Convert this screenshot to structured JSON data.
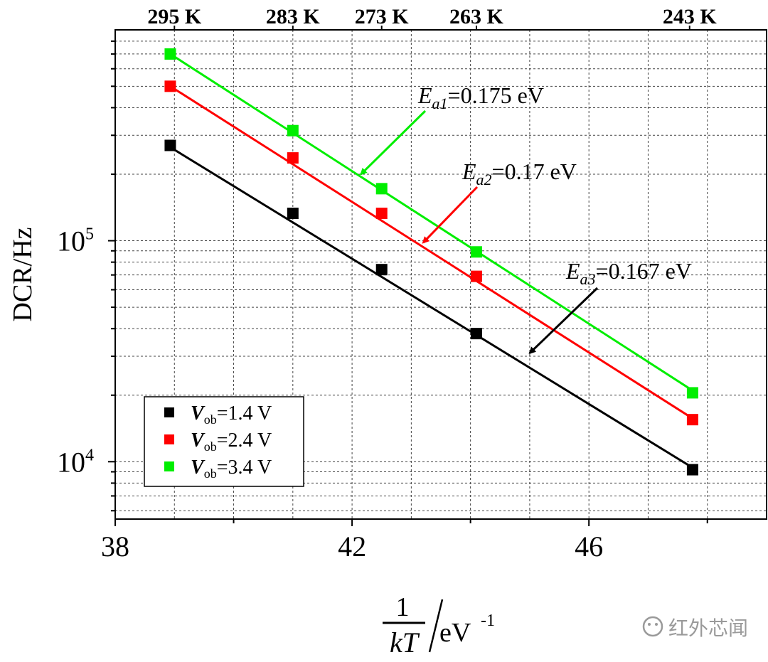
{
  "chart_data": {
    "type": "scatter",
    "yscale": "log",
    "xlim": [
      38,
      49
    ],
    "ylim": [
      5500,
      900000
    ],
    "x_ticks": [
      38,
      42,
      46
    ],
    "x_ticks_minor": [
      40,
      44,
      48
    ],
    "y_ticks": [
      10000,
      100000
    ],
    "y_tick_labels": [
      {
        "base": "10",
        "exp": "4"
      },
      {
        "base": "10",
        "exp": "5"
      }
    ],
    "ylabel": "DCR/Hz",
    "xlabel": {
      "num": "1",
      "den": "kT",
      "unit": "eV",
      "exp": "-1"
    },
    "top_axis": {
      "labels": [
        "295 K",
        "283 K",
        "273 K",
        "263 K",
        "243 K"
      ],
      "x": [
        39.0,
        41.0,
        42.5,
        44.1,
        47.7
      ]
    },
    "x": [
      38.93,
      41.0,
      42.5,
      44.1,
      47.75
    ],
    "series": [
      {
        "name": "Vob=1.4 V",
        "label_var": "V",
        "label_sub": "ob",
        "label_val": "=1.4 V",
        "color": "#000000",
        "values": [
          270000,
          133000,
          74000,
          38000,
          9200
        ],
        "fit": [
          [
            38.93,
            265000
          ],
          [
            47.75,
            9400
          ]
        ]
      },
      {
        "name": "Vob=2.4 V",
        "label_var": "V",
        "label_sub": "ob",
        "label_val": "=2.4 V",
        "color": "#ff0000",
        "values": [
          500000,
          237000,
          133000,
          69000,
          15500
        ],
        "fit": [
          [
            38.93,
            500000
          ],
          [
            47.75,
            15700
          ]
        ]
      },
      {
        "name": "Vob=3.4 V",
        "label_var": "V",
        "label_sub": "ob",
        "label_val": "=3.4 V",
        "color": "#00ee00",
        "values": [
          700000,
          315000,
          172000,
          89000,
          20500
        ],
        "fit": [
          [
            38.93,
            700000
          ],
          [
            47.75,
            21000
          ]
        ]
      }
    ],
    "annotations": [
      {
        "var": "E",
        "sub": "a1",
        "text": "=0.175 eV",
        "color": "#00ee00",
        "arrow_to": [
          42.15,
          200000
        ]
      },
      {
        "var": "E",
        "sub": "a2",
        "text": "=0.17 eV",
        "color": "#ff0000",
        "arrow_to": [
          43.2,
          98000
        ]
      },
      {
        "var": "E",
        "sub": "a3",
        "text": "=0.167 eV",
        "color": "#000000",
        "arrow_to": [
          45.0,
          31000
        ]
      }
    ],
    "legend_position": "bottom-left",
    "grid": true
  },
  "watermark": "红外芯闻"
}
